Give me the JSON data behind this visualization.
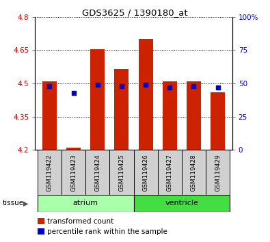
{
  "title": "GDS3625 / 1390180_at",
  "samples": [
    "GSM119422",
    "GSM119423",
    "GSM119424",
    "GSM119425",
    "GSM119426",
    "GSM119427",
    "GSM119428",
    "GSM119429"
  ],
  "transformed_count": [
    4.51,
    4.21,
    4.655,
    4.565,
    4.7,
    4.51,
    4.51,
    4.46
  ],
  "percentile_rank": [
    48,
    43,
    49,
    48,
    49,
    47,
    48,
    47
  ],
  "ylim_left": [
    4.2,
    4.8
  ],
  "ylim_right": [
    0,
    100
  ],
  "yticks_left": [
    4.2,
    4.35,
    4.5,
    4.65,
    4.8
  ],
  "yticks_right": [
    0,
    25,
    50,
    75,
    100
  ],
  "ytick_labels_right": [
    "0",
    "25",
    "50",
    "75",
    "100%"
  ],
  "bar_bottom": 4.2,
  "bar_color": "#cc2200",
  "dot_color": "#0000cc",
  "tissue_groups": [
    {
      "label": "atrium",
      "indices": [
        0,
        1,
        2,
        3
      ],
      "color": "#aaffaa"
    },
    {
      "label": "ventricle",
      "indices": [
        4,
        5,
        6,
        7
      ],
      "color": "#44dd44"
    }
  ],
  "legend_items": [
    {
      "label": "transformed count",
      "color": "#cc2200"
    },
    {
      "label": "percentile rank within the sample",
      "color": "#0000cc"
    }
  ],
  "tissue_label": "tissue",
  "sample_box_color": "#d0d0d0",
  "bg_color": "#ffffff",
  "tick_label_color_left": "#cc0000",
  "tick_label_color_right": "#0000cc"
}
